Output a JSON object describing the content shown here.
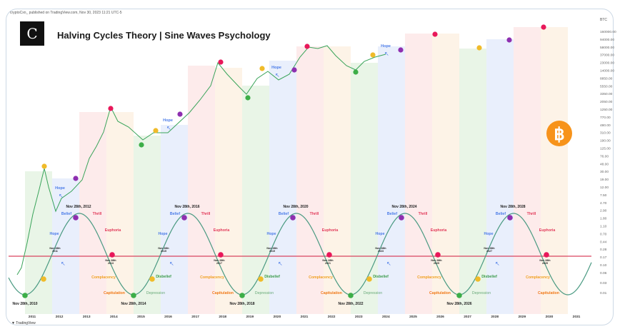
{
  "header": {
    "published": "cryptoCxn_ published on TradingView.com, Nov 30, 2023 11:21 UTC-5",
    "logo_letter": "C",
    "title": "Halving Cycles Theory | Sine Waves Psychology",
    "footer": "TradingView"
  },
  "colors": {
    "accumulation": "#e3f2e1",
    "hope": "#e3ebfb",
    "thrill": "#fde6e6",
    "complacency": "#fdf0e1",
    "sine": "#4a9a82",
    "axis_line": "#d9455f",
    "price_up": "#3aa45a",
    "price_down": "#d24a4a",
    "dot_green": "#3cae48",
    "dot_yellow": "#f0bb2a",
    "dot_purple": "#8e2fb0",
    "dot_red": "#e8185a",
    "bitcoin": "#f7931a"
  },
  "chart_data": {
    "type": "line",
    "title": "Halving Cycles Theory | Sine Waves Psychology",
    "yaxis_unit": "BTC",
    "yaxis_scale": "log",
    "y_ticks": [
      "160000.00",
      "94000.00",
      "58000.00",
      "37000.00",
      "23000.00",
      "14000.00",
      "8850.00",
      "5550.00",
      "3350.00",
      "2050.00",
      "1250.00",
      "770.00",
      "480.00",
      "310.00",
      "190.00",
      "125.00",
      "76.00",
      "48.00",
      "30.00",
      "19.00",
      "12.00",
      "7.50",
      "4.70",
      "2.90",
      "1.80",
      "1.10",
      "0.70",
      "0.44",
      "0.28",
      "0.17",
      "0.10",
      "0.06",
      "0.03",
      "0.01"
    ],
    "x_ticks": [
      "2011",
      "2012",
      "2013",
      "2014",
      "2015",
      "2016",
      "2017",
      "2018",
      "2019",
      "2020",
      "2021",
      "2022",
      "2023",
      "2024",
      "2025",
      "2026",
      "2027",
      "2028",
      "2029",
      "2030",
      "2031"
    ],
    "sine_period_years": 4,
    "hope_label": "Hope",
    "cycles": [
      {
        "bottom": "Nov 28th, 2010",
        "up_cross": [
          "Nov 28th",
          "2011"
        ],
        "top": "Nov 28th, 2012",
        "down_cross": [
          "Nov 28th",
          "2013"
        ],
        "phases": {
          "hope": "Hope",
          "belief": "Belief",
          "thrill": "Thrill",
          "euphoria": "Euphoria",
          "complacency": "Complacency",
          "capitulation": "Capitulation"
        }
      },
      {
        "bottom": "Nov 28th, 2014",
        "up_cross": [
          "Nov 28th",
          "2015"
        ],
        "top": "Nov 28th, 2016",
        "down_cross": [
          "Nov 28th",
          "2017"
        ],
        "phases": {
          "depression": "Depression",
          "disbelief": "Disbelief",
          "hope": "Hope",
          "belief": "Belief",
          "thrill": "Thrill",
          "euphoria": "Euphoria",
          "complacency": "Complacency",
          "capitulation": "Capitulation"
        }
      },
      {
        "bottom": "Nov 28th, 2018",
        "up_cross": [
          "Nov 28th",
          "2019"
        ],
        "top": "Nov 28th, 2020",
        "down_cross": [
          "Nov 28th",
          "2021"
        ],
        "phases": {
          "depression": "Depression",
          "disbelief": "Disbelief",
          "hope": "Hope",
          "belief": "Belief",
          "thrill": "Thrill",
          "euphoria": "Euphoria",
          "complacency": "Complacency",
          "capitulation": "Capitulation"
        }
      },
      {
        "bottom": "Nov 28th, 2022",
        "up_cross": [
          "Nov 28th",
          "2023"
        ],
        "top": "Nov 28th, 2024",
        "down_cross": [
          "Nov 28th",
          "2025"
        ],
        "phases": {
          "depression": "Depression",
          "disbelief": "Disbelief",
          "hope": "Hope",
          "belief": "Belief",
          "thrill": "Thrill",
          "euphoria": "Euphoria",
          "complacency": "Complacency",
          "capitulation": "Capitulation"
        }
      },
      {
        "bottom": "Nov 28th, 2026",
        "up_cross": [
          "Nov 28th",
          "2027"
        ],
        "top": "Nov 28th, 2028",
        "down_cross": [
          "Nov 28th",
          "2029"
        ],
        "phases": {
          "depression": "Depression",
          "disbelief": "Disbelief",
          "hope": "Hope",
          "belief": "Belief",
          "thrill": "Thrill",
          "euphoria": "Euphoria",
          "complacency": "Complacency",
          "capitulation": "Capitulation"
        }
      }
    ]
  }
}
